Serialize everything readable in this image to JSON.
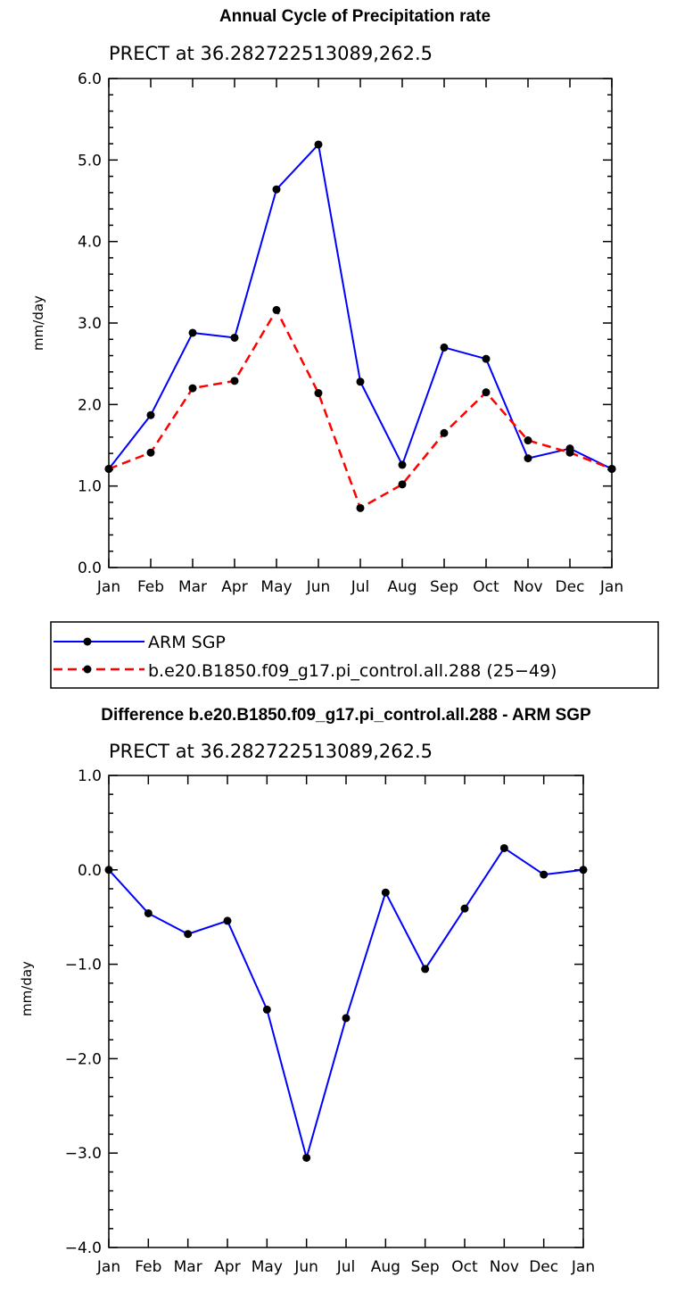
{
  "chart_data": [
    {
      "type": "line",
      "title": "Annual Cycle of Precipitation rate",
      "subtitle": "PRECT at 36.282722513089,262.5",
      "xlabel": "",
      "ylabel": "mm/day",
      "categories": [
        "Jan",
        "Feb",
        "Mar",
        "Apr",
        "May",
        "Jun",
        "Jul",
        "Aug",
        "Sep",
        "Oct",
        "Nov",
        "Dec",
        "Jan"
      ],
      "ylim": [
        0.0,
        6.0
      ],
      "yticks": [
        "0.0",
        "1.0",
        "2.0",
        "3.0",
        "4.0",
        "5.0",
        "6.0"
      ],
      "series": [
        {
          "name": "ARM SGP",
          "color": "#0000ff",
          "dash": "solid",
          "values": [
            1.21,
            1.87,
            2.88,
            2.82,
            4.64,
            5.19,
            2.28,
            1.26,
            2.7,
            2.56,
            1.34,
            1.46,
            1.21
          ]
        },
        {
          "name": "b.e20.B1850.f09_g17.pi_control.all.288 (25-49)",
          "color": "#ff0000",
          "dash": "dashed",
          "values": [
            1.21,
            1.41,
            2.2,
            2.29,
            3.16,
            2.14,
            0.73,
            1.02,
            1.65,
            2.15,
            1.56,
            1.41,
            1.21
          ]
        }
      ]
    },
    {
      "type": "line",
      "title": "Difference b.e20.B1850.f09_g17.pi_control.all.288 - ARM SGP",
      "subtitle": "PRECT at 36.282722513089,262.5",
      "xlabel": "",
      "ylabel": "mm/day",
      "categories": [
        "Jan",
        "Feb",
        "Mar",
        "Apr",
        "May",
        "Jun",
        "Jul",
        "Aug",
        "Sep",
        "Oct",
        "Nov",
        "Dec",
        "Jan"
      ],
      "ylim": [
        -4.0,
        1.0
      ],
      "yticks": [
        "-4.0",
        "-3.0",
        "-2.0",
        "-1.0",
        "0.0",
        "1.0"
      ],
      "series": [
        {
          "name": "Difference",
          "color": "#0000ff",
          "dash": "solid",
          "values": [
            0.0,
            -0.46,
            -0.68,
            -0.54,
            -1.48,
            -3.05,
            -1.57,
            -0.24,
            -1.05,
            -0.41,
            0.23,
            -0.05,
            0.0
          ]
        }
      ]
    }
  ],
  "legend": {
    "entries": [
      "ARM SGP",
      "b.e20.B1850.f09_g17.pi_control.all.288 (25−49)"
    ]
  }
}
